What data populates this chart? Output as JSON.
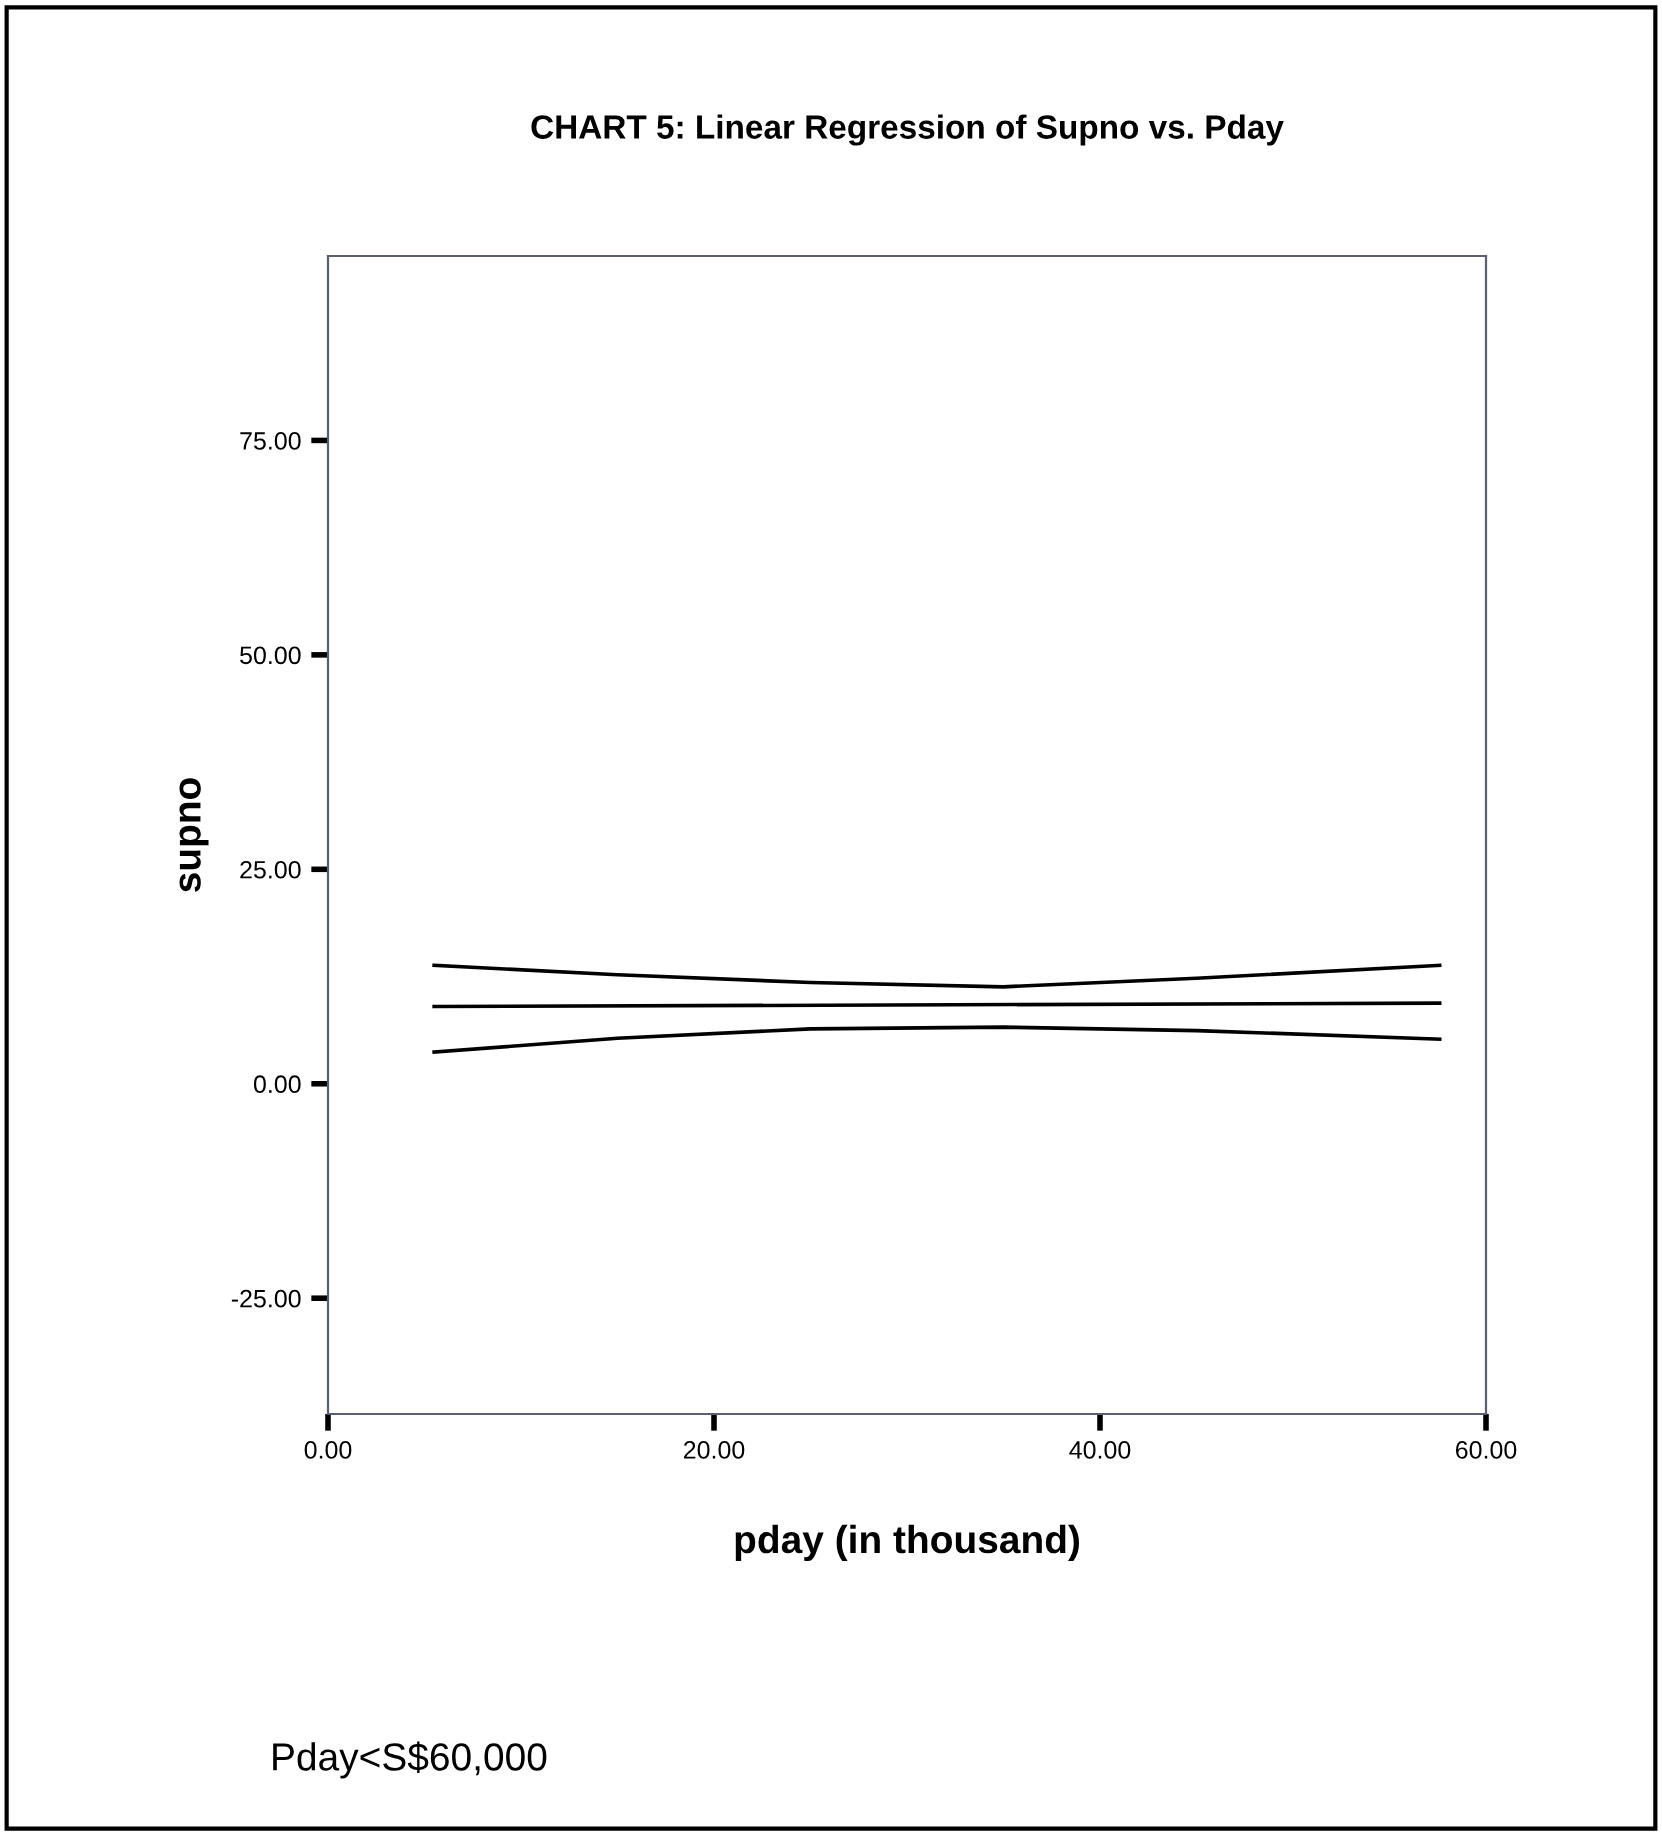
{
  "chart_data": {
    "type": "line",
    "title": "CHART 5: Linear Regression of Supno vs. Pday",
    "xlabel": "pday (in thousand)",
    "ylabel": "supno",
    "annotations": [
      "Pday<S$60,000"
    ],
    "series": [
      {
        "color": "#000000",
        "x": [
          5.5,
          15,
          25,
          35,
          45,
          57.6
        ],
        "values": [
          13.8,
          12.7,
          11.8,
          11.3,
          12.3,
          13.8
        ]
      },
      {
        "color": "#000000",
        "x": [
          5.5,
          57.6
        ],
        "values": [
          9.0,
          9.4
        ]
      },
      {
        "color": "#000000",
        "x": [
          5.5,
          15,
          25,
          35,
          45,
          57.6
        ],
        "values": [
          3.7,
          5.3,
          6.4,
          6.6,
          6.2,
          5.2
        ]
      }
    ],
    "xlim": [
      0,
      60
    ],
    "ylim": [
      -38.5,
      96.5
    ],
    "xticks": [
      {
        "value": 0,
        "label": "0.00"
      },
      {
        "value": 20,
        "label": "20.00"
      },
      {
        "value": 40,
        "label": "40.00"
      },
      {
        "value": 60,
        "label": "60.00"
      }
    ],
    "yticks": [
      {
        "value": -25,
        "label": "-25.00"
      },
      {
        "value": 0,
        "label": "0.00"
      },
      {
        "value": 25,
        "label": "25.00"
      },
      {
        "value": 50,
        "label": "50.00"
      },
      {
        "value": 75,
        "label": "75.00"
      }
    ],
    "grid": false,
    "legend": false,
    "marker": "none",
    "line_style": "solid"
  }
}
